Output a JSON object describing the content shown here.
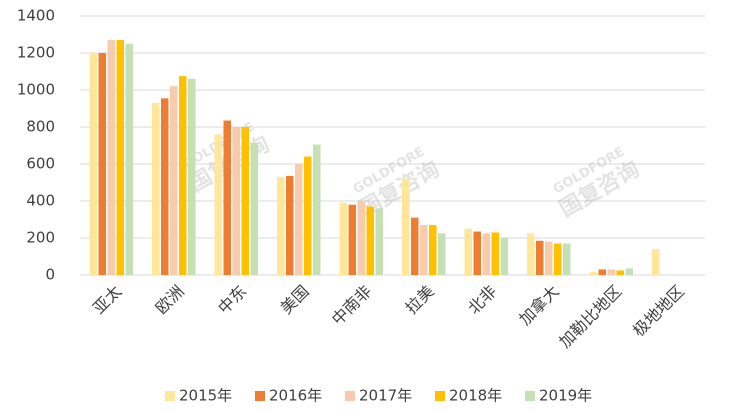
{
  "chart_data": {
    "type": "bar",
    "categories": [
      "亚太",
      "欧洲",
      "中东",
      "美国",
      "中南非",
      "拉美",
      "北非",
      "加拿大",
      "加勒比地区",
      "极地地区"
    ],
    "series": [
      {
        "name": "2015年",
        "color": "#FFE699",
        "values": [
          1200,
          930,
          760,
          530,
          390,
          520,
          250,
          225,
          15,
          140
        ]
      },
      {
        "name": "2016年",
        "color": "#ED7D31",
        "values": [
          1200,
          955,
          835,
          535,
          380,
          310,
          235,
          185,
          30,
          null
        ]
      },
      {
        "name": "2017年",
        "color": "#F8CBAD",
        "values": [
          1270,
          1020,
          800,
          600,
          400,
          270,
          225,
          180,
          30,
          null
        ]
      },
      {
        "name": "2018年",
        "color": "#FFC000",
        "values": [
          1270,
          1075,
          800,
          640,
          370,
          270,
          230,
          170,
          25,
          null
        ]
      },
      {
        "name": "2019年",
        "color": "#C5E0B4",
        "values": [
          1250,
          1060,
          715,
          705,
          360,
          225,
          200,
          170,
          35,
          null
        ]
      }
    ],
    "ylim": [
      0,
      1400
    ],
    "yticks": [
      0,
      200,
      400,
      600,
      800,
      1000,
      1200,
      1400
    ],
    "grid": true,
    "watermark": [
      "GOLDFORE",
      "国复咨询"
    ]
  }
}
